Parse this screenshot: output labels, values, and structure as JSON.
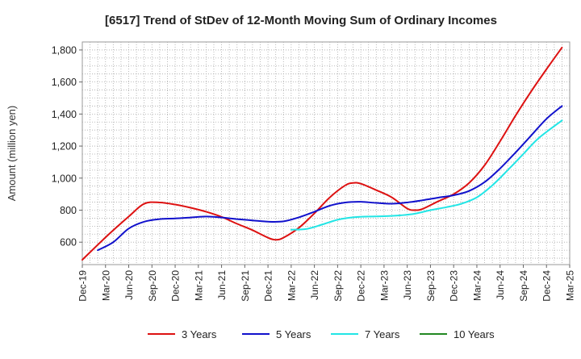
{
  "chart_data": {
    "type": "line",
    "title": "[6517]  Trend of StDev of 12-Month Moving Sum of Ordinary Incomes",
    "xlabel": "",
    "ylabel": "Amount (million yen)",
    "ylim": [
      460,
      1850
    ],
    "yticks": [
      600,
      800,
      1000,
      1200,
      1400,
      1600,
      1800
    ],
    "ytick_labels": [
      "600",
      "800",
      "1,000",
      "1,200",
      "1,400",
      "1,600",
      "1,800"
    ],
    "x_tick_labels": [
      "Dec-19",
      "Mar-20",
      "Jun-20",
      "Sep-20",
      "Dec-20",
      "Mar-21",
      "Jun-21",
      "Sep-21",
      "Dec-21",
      "Mar-22",
      "Jun-22",
      "Sep-22",
      "Dec-22",
      "Mar-23",
      "Jun-23",
      "Sep-23",
      "Dec-23",
      "Mar-24",
      "Jun-24",
      "Sep-24",
      "Dec-24",
      "Mar-25"
    ],
    "x_range_months": [
      0,
      63
    ],
    "grid": true,
    "legend_position": "bottom",
    "series": [
      {
        "name": "3 Years",
        "color": "#dd1111",
        "points": [
          [
            0,
            490
          ],
          [
            3,
            630
          ],
          [
            6,
            760
          ],
          [
            8,
            840
          ],
          [
            10,
            848
          ],
          [
            12,
            835
          ],
          [
            14,
            815
          ],
          [
            16,
            790
          ],
          [
            18,
            758
          ],
          [
            20,
            715
          ],
          [
            22,
            675
          ],
          [
            24,
            628
          ],
          [
            25,
            615
          ],
          [
            26,
            628
          ],
          [
            28,
            690
          ],
          [
            30,
            780
          ],
          [
            32,
            880
          ],
          [
            34,
            955
          ],
          [
            35,
            970
          ],
          [
            36,
            965
          ],
          [
            38,
            925
          ],
          [
            40,
            880
          ],
          [
            42,
            810
          ],
          [
            43,
            800
          ],
          [
            44,
            808
          ],
          [
            46,
            855
          ],
          [
            48,
            900
          ],
          [
            50,
            970
          ],
          [
            52,
            1080
          ],
          [
            54,
            1230
          ],
          [
            56,
            1390
          ],
          [
            58,
            1540
          ],
          [
            60,
            1680
          ],
          [
            62,
            1815
          ]
        ]
      },
      {
        "name": "5 Years",
        "color": "#1111cc",
        "points": [
          [
            2,
            550
          ],
          [
            4,
            600
          ],
          [
            6,
            685
          ],
          [
            8,
            728
          ],
          [
            10,
            744
          ],
          [
            12,
            748
          ],
          [
            14,
            754
          ],
          [
            16,
            760
          ],
          [
            18,
            754
          ],
          [
            20,
            744
          ],
          [
            22,
            736
          ],
          [
            24,
            728
          ],
          [
            26,
            730
          ],
          [
            28,
            755
          ],
          [
            30,
            790
          ],
          [
            32,
            828
          ],
          [
            34,
            848
          ],
          [
            36,
            852
          ],
          [
            38,
            845
          ],
          [
            40,
            840
          ],
          [
            42,
            848
          ],
          [
            44,
            862
          ],
          [
            46,
            878
          ],
          [
            48,
            893
          ],
          [
            50,
            920
          ],
          [
            52,
            975
          ],
          [
            54,
            1060
          ],
          [
            56,
            1160
          ],
          [
            58,
            1265
          ],
          [
            60,
            1370
          ],
          [
            62,
            1450
          ]
        ]
      },
      {
        "name": "7 Years",
        "color": "#22e5e5",
        "points": [
          [
            27,
            678
          ],
          [
            29,
            683
          ],
          [
            31,
            710
          ],
          [
            33,
            740
          ],
          [
            35,
            755
          ],
          [
            37,
            760
          ],
          [
            39,
            762
          ],
          [
            41,
            767
          ],
          [
            43,
            778
          ],
          [
            45,
            800
          ],
          [
            47,
            818
          ],
          [
            49,
            840
          ],
          [
            51,
            880
          ],
          [
            53,
            955
          ],
          [
            55,
            1050
          ],
          [
            57,
            1150
          ],
          [
            59,
            1250
          ],
          [
            62,
            1360
          ]
        ]
      },
      {
        "name": "10 Years",
        "color": "#228822",
        "points": []
      }
    ]
  }
}
